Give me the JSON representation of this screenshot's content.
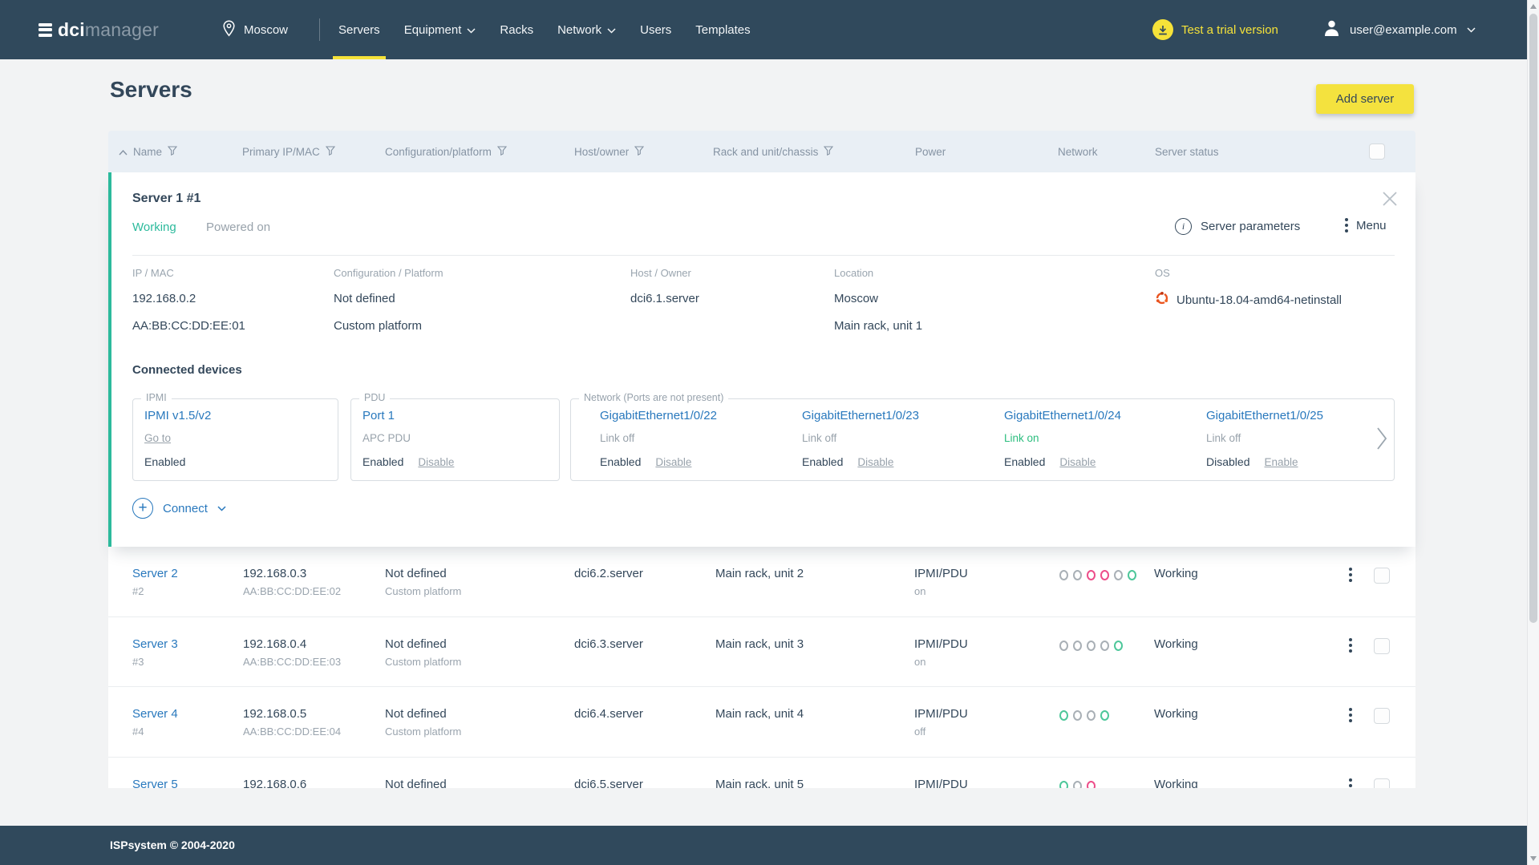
{
  "colors": {
    "navy": "#30495c",
    "yellow": "#f4e23e",
    "teal_accent": "#2cba9c",
    "blue_link": "#2878bd",
    "link_on_green": "#2bbd7e",
    "dot_gray": "#a9b0b6",
    "dot_pink": "#ed4e8a",
    "dot_green": "#4ec79a",
    "header_bg": "#e9eff5"
  },
  "nav": {
    "logo": {
      "bold": "dci",
      "light": "manager"
    },
    "location": "Moscow",
    "items": [
      {
        "label": "Servers",
        "active": true,
        "dropdown": false
      },
      {
        "label": "Equipment",
        "active": false,
        "dropdown": true
      },
      {
        "label": "Racks",
        "active": false,
        "dropdown": false
      },
      {
        "label": "Network",
        "active": false,
        "dropdown": true
      },
      {
        "label": "Users",
        "active": false,
        "dropdown": false
      },
      {
        "label": "Templates",
        "active": false,
        "dropdown": false
      }
    ],
    "trial": "Test a trial version",
    "user": "user@example.com"
  },
  "page": {
    "title": "Servers",
    "add_button": "Add server"
  },
  "table": {
    "headers": [
      {
        "label": "Name",
        "sort": true,
        "filter": true
      },
      {
        "label": "Primary IP/MAC",
        "filter": true
      },
      {
        "label": "Configuration/platform",
        "filter": true
      },
      {
        "label": "Host/owner",
        "filter": true
      },
      {
        "label": "Rack and unit/chassis",
        "filter": true
      },
      {
        "label": "Power",
        "filter": false
      },
      {
        "label": "Network",
        "filter": false
      },
      {
        "label": "Server status",
        "filter": false
      }
    ]
  },
  "expanded": {
    "title": "Server 1 #1",
    "status": "Working",
    "power": "Powered on",
    "params_label": "Server parameters",
    "menu_label": "Menu",
    "details": [
      {
        "label": "IP / MAC",
        "lines": [
          "192.168.0.2",
          "AA:BB:CC:DD:EE:01"
        ]
      },
      {
        "label": "Configuration / Platform",
        "lines": [
          "Not defined",
          "Custom platform"
        ]
      },
      {
        "label": "Host / Owner",
        "lines": [
          "dci6.1.server"
        ]
      },
      {
        "label": "Location",
        "lines": [
          "Moscow",
          "Main rack, unit 1"
        ]
      },
      {
        "label": "OS",
        "lines": [
          "Ubuntu-18.04-amd64-netinstall"
        ],
        "icon": "ubuntu-icon"
      }
    ],
    "connected_title": "Connected devices",
    "devices": [
      {
        "legend": "IPMI",
        "name": "IPMI v1.5/v2",
        "goto": "Go to",
        "state": "Enabled"
      },
      {
        "legend": "PDU",
        "name": "Port 1",
        "sub": "APC PDU",
        "state": "Enabled",
        "action": "Disable"
      }
    ],
    "network": {
      "legend": "Network (Ports are not present)",
      "ports": [
        {
          "name": "GigabitEthernet1/0/22",
          "link": "Link off",
          "link_on": false,
          "state": "Enabled",
          "action": "Disable"
        },
        {
          "name": "GigabitEthernet1/0/23",
          "link": "Link off",
          "link_on": false,
          "state": "Enabled",
          "action": "Disable"
        },
        {
          "name": "GigabitEthernet1/0/24",
          "link": "Link on",
          "link_on": true,
          "state": "Enabled",
          "action": "Disable"
        },
        {
          "name": "GigabitEthernet1/0/25",
          "link": "Link off",
          "link_on": false,
          "state": "Disabled",
          "action": "Enable"
        }
      ]
    },
    "connect_label": "Connect"
  },
  "rows": [
    {
      "name": "Server 2",
      "id": "#2",
      "ip": "192.168.0.3",
      "mac": "AA:BB:CC:DD:EE:02",
      "config": "Not defined",
      "platform": "Custom platform",
      "host": "dci6.2.server",
      "rack": "Main rack, unit 2",
      "power": "IPMI/PDU",
      "power_state": "on",
      "dots": [
        "gray",
        "gray",
        "pink",
        "pink",
        "gray",
        "green"
      ],
      "status": "Working"
    },
    {
      "name": "Server 3",
      "id": "#3",
      "ip": "192.168.0.4",
      "mac": "AA:BB:CC:DD:EE:03",
      "config": "Not defined",
      "platform": "Custom platform",
      "host": "dci6.3.server",
      "rack": "Main rack, unit 3",
      "power": "IPMI/PDU",
      "power_state": "on",
      "dots": [
        "gray",
        "gray",
        "gray",
        "gray",
        "green"
      ],
      "status": "Working"
    },
    {
      "name": "Server 4",
      "id": "#4",
      "ip": "192.168.0.5",
      "mac": "AA:BB:CC:DD:EE:04",
      "config": "Not defined",
      "platform": "Custom platform",
      "host": "dci6.4.server",
      "rack": "Main rack, unit 4",
      "power": "IPMI/PDU",
      "power_state": "off",
      "dots": [
        "green",
        "gray",
        "gray",
        "green"
      ],
      "status": "Working"
    },
    {
      "name": "Server 5",
      "ip": "192.168.0.6",
      "config": "Not defined",
      "host": "dci6.5.server",
      "rack": "Main rack, unit 5",
      "power": "IPMI/PDU",
      "dots": [
        "green",
        "gray",
        "pink"
      ],
      "status": "Working"
    }
  ],
  "footer": {
    "copyright": "ISPsystem © 2004-2020"
  }
}
